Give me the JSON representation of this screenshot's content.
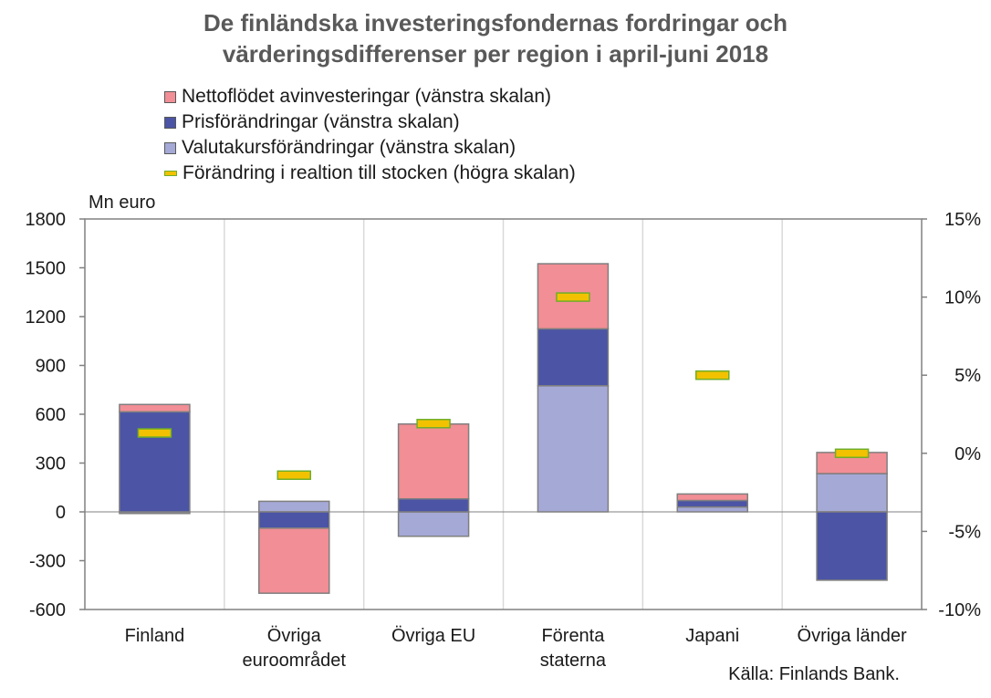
{
  "title_line1": "De finländska investeringsfondernas fordringar och",
  "title_line2": "värderingsdifferenser per region i april-juni 2018",
  "unit_label": "Mn euro",
  "source": "Källa: Finlands Bank.",
  "legend": [
    {
      "label": "Nettoflödet avinvesteringar (vänstra skalan)",
      "color": "#f28e95"
    },
    {
      "label": "Prisförändringar (vänstra skalan)",
      "color": "#4b54a5"
    },
    {
      "label": "Valutakursförändringar (vänstra skalan)",
      "color": "#a5a9d6"
    },
    {
      "label": "Förändring i realtion till stocken (högra skalan)",
      "color": "#f2c200"
    }
  ],
  "chart_data": {
    "type": "bar",
    "stacked": true,
    "categories": [
      [
        "Finland"
      ],
      [
        "Övriga",
        "euroområdet"
      ],
      [
        "Övriga EU"
      ],
      [
        "Förenta",
        "staterna"
      ],
      [
        "Japani"
      ],
      [
        "Övriga länder"
      ]
    ],
    "series": [
      {
        "name": "Valutakursförändringar (vänstra skalan)",
        "color": "#a5a9d6",
        "values": [
          -10,
          65,
          -150,
          775,
          30,
          235
        ]
      },
      {
        "name": "Prisförändringar (vänstra skalan)",
        "color": "#4b54a5",
        "values": [
          615,
          -100,
          80,
          350,
          40,
          -420
        ]
      },
      {
        "name": "Nettoflödet avinvesteringar (vänstra skalan)",
        "color": "#f28e95",
        "values": [
          45,
          -400,
          460,
          400,
          40,
          130
        ]
      }
    ],
    "marker_series": {
      "name": "Förändring i realtion till stocken (högra skalan)",
      "color": "#f2c200",
      "edge": "#6fae2a",
      "axis": "right",
      "values": [
        1.3,
        -1.4,
        1.9,
        10.0,
        5.0,
        0.0
      ]
    },
    "left_axis": {
      "min": -600,
      "max": 1800,
      "ticks": [
        "-600",
        "-300",
        "0",
        "300",
        "600",
        "900",
        "1200",
        "1500",
        "1800"
      ]
    },
    "right_axis": {
      "min": -10,
      "max": 15,
      "ticks": [
        "-10%",
        "-5%",
        "0%",
        "5%",
        "10%",
        "15%"
      ]
    },
    "grid": "vertical category separators"
  }
}
